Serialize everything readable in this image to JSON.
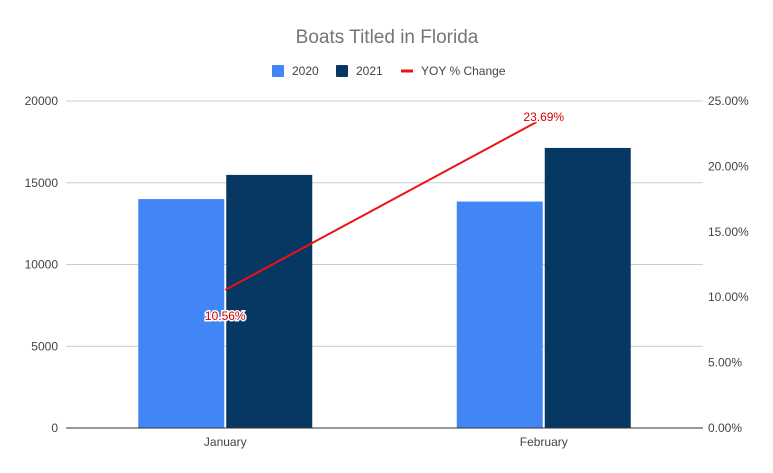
{
  "chart_data": {
    "type": "bar",
    "title": "Boats Titled in Florida",
    "categories": [
      "January",
      "February"
    ],
    "series": [
      {
        "name": "2020",
        "type": "bar",
        "axis": "left",
        "color": "#4285f4",
        "values": [
          14000,
          13850
        ]
      },
      {
        "name": "2021",
        "type": "bar",
        "axis": "left",
        "color": "#073763",
        "values": [
          15480,
          17130
        ]
      },
      {
        "name": "YOY % Change",
        "type": "line",
        "axis": "right",
        "color": "#ee1111",
        "values": [
          10.56,
          23.69
        ],
        "value_labels": [
          "10.56%",
          "23.69%"
        ]
      }
    ],
    "y_left": {
      "min": 0,
      "max": 20000,
      "ticks": [
        "0",
        "5000",
        "10000",
        "15000",
        "20000"
      ]
    },
    "y_right": {
      "min": 0,
      "max": 25,
      "ticks": [
        "0.00%",
        "5.00%",
        "10.00%",
        "15.00%",
        "20.00%",
        "25.00%"
      ]
    },
    "grid": true,
    "legend_position": "top"
  }
}
